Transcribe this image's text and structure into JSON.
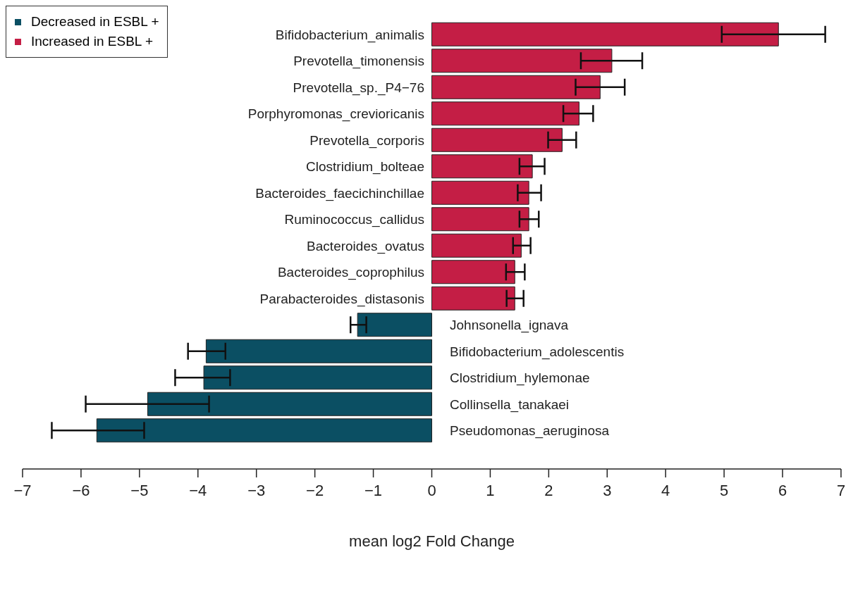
{
  "chart_data": {
    "type": "bar",
    "orientation": "horizontal",
    "xlabel": "mean log2 Fold Change",
    "categories": [
      "Bifidobacterium_animalis",
      "Prevotella_timonensis",
      "Prevotella_sp._P4−76",
      "Porphyromonas_crevioricanis",
      "Prevotella_corporis",
      "Clostridium_bolteae",
      "Bacteroides_faecichinchillae",
      "Ruminococcus_callidus",
      "Bacteroides_ovatus",
      "Bacteroides_coprophilus",
      "Parabacteroides_distasonis",
      "Johnsonella_ignava",
      "Bifidobacterium_adolescentis",
      "Clostridium_hylemonae",
      "Collinsella_tanakaei",
      "Pseudomonas_aeruginosa"
    ],
    "series": [
      {
        "name": "Decreased in ESBL +",
        "color": "#0b4f63",
        "values": [
          null,
          null,
          null,
          null,
          null,
          null,
          null,
          null,
          null,
          null,
          null,
          -1.27,
          -3.86,
          -3.9,
          -4.86,
          -5.73
        ],
        "errors": [
          null,
          null,
          null,
          null,
          null,
          null,
          null,
          null,
          null,
          null,
          null,
          [
            -1.39,
            -1.12
          ],
          [
            -4.17,
            -3.53
          ],
          [
            -4.39,
            -3.45
          ],
          [
            -5.92,
            -3.81
          ],
          [
            -6.5,
            -4.92
          ]
        ]
      },
      {
        "name": "Increased in ESBL +",
        "color": "#c41e45",
        "values": [
          5.93,
          3.08,
          2.88,
          2.52,
          2.23,
          1.72,
          1.66,
          1.66,
          1.53,
          1.42,
          1.42,
          null,
          null,
          null,
          null,
          null
        ],
        "errors": [
          [
            4.96,
            6.73
          ],
          [
            2.55,
            3.6
          ],
          [
            2.46,
            3.3
          ],
          [
            2.25,
            2.76
          ],
          [
            1.99,
            2.47
          ],
          [
            1.5,
            1.93
          ],
          [
            1.47,
            1.87
          ],
          [
            1.5,
            1.83
          ],
          [
            1.39,
            1.69
          ],
          [
            1.27,
            1.59
          ],
          [
            1.28,
            1.57
          ],
          null,
          null,
          null,
          null,
          null
        ]
      }
    ],
    "xlim": [
      -7,
      7
    ],
    "xticks": [
      {
        "value": -7,
        "label": "−7"
      },
      {
        "value": -6,
        "label": "−6"
      },
      {
        "value": -5,
        "label": "−5"
      },
      {
        "value": -4,
        "label": "−4"
      },
      {
        "value": -3,
        "label": "−3"
      },
      {
        "value": -2,
        "label": "−2"
      },
      {
        "value": -1,
        "label": "−1"
      },
      0,
      1,
      2,
      3,
      4,
      5,
      6,
      7
    ],
    "grid": false,
    "legend": "top left"
  }
}
